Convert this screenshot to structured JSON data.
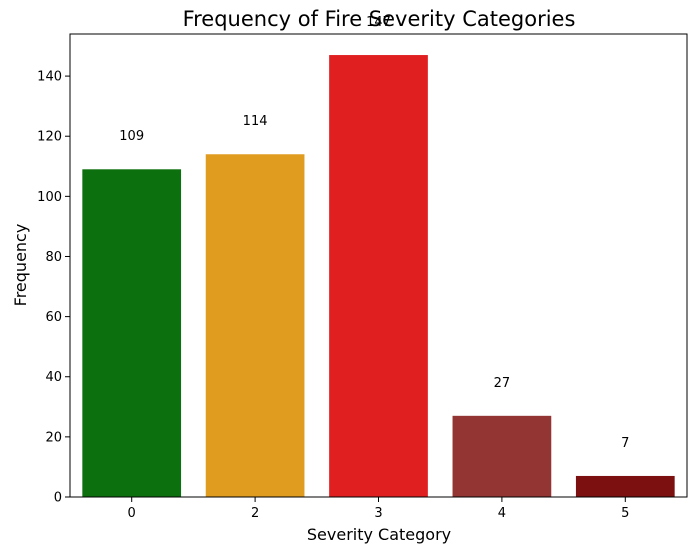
{
  "chart_data": {
    "type": "bar",
    "title": "Frequency of Fire Severity Categories",
    "xlabel": "Severity Category",
    "ylabel": "Frequency",
    "categories": [
      "0",
      "2",
      "3",
      "4",
      "5"
    ],
    "values": [
      109,
      114,
      147,
      27,
      7
    ],
    "data_labels": [
      "109",
      "114",
      "147",
      "27",
      "7"
    ],
    "colors": [
      "#0d700f",
      "#e09c1f",
      "#e01f20",
      "#923533",
      "#7c1010"
    ],
    "ylim": [
      0,
      154
    ],
    "yticks": [
      0,
      20,
      40,
      60,
      80,
      100,
      120,
      140
    ],
    "grid": false,
    "legend": "none"
  }
}
